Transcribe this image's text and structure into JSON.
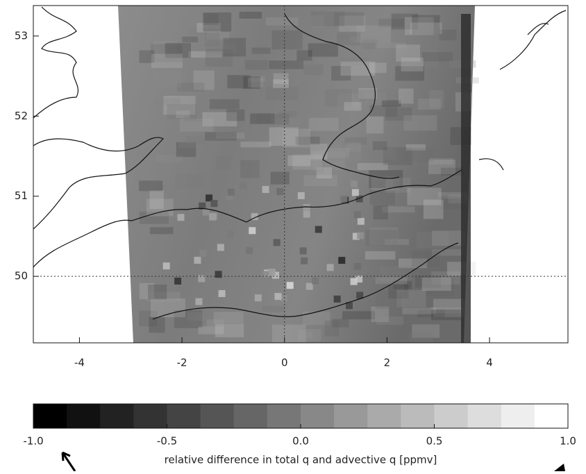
{
  "chart_data": {
    "type": "map",
    "xlim": [
      -4.9,
      5.53
    ],
    "ylim": [
      49.17,
      53.38
    ],
    "xticks": [
      -4,
      -2,
      0,
      2,
      4
    ],
    "yticks": [
      50,
      51,
      52,
      53
    ],
    "reference_lines": {
      "x": [
        0
      ],
      "y": [
        50
      ]
    },
    "colorbar": {
      "lim": [
        -1,
        1
      ],
      "levels": 16,
      "ticks": [
        {
          "value": -1,
          "label": "-1.0"
        },
        -0.5,
        {
          "value": 0,
          "label": "0.0"
        },
        0.5,
        {
          "value": 1,
          "label": "1.0"
        }
      ],
      "label": "relative difference in total q and advective q [ppmv]"
    }
  }
}
